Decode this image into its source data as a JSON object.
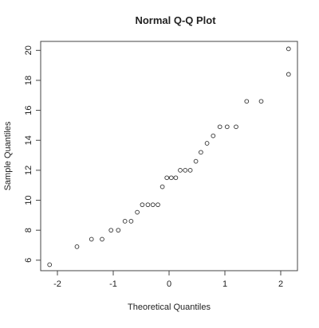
{
  "chart_data": {
    "type": "scatter",
    "title": "Normal Q-Q Plot",
    "xlabel": "Theoretical Quantiles",
    "ylabel": "Sample Quantiles",
    "xlim": [
      -2.3,
      2.3
    ],
    "ylim": [
      5.3,
      20.6
    ],
    "x_ticks": [
      -2,
      -1,
      0,
      1,
      2
    ],
    "y_ticks": [
      6,
      8,
      10,
      12,
      14,
      16,
      18,
      20
    ],
    "grid": false,
    "legend": "none",
    "marker": "open-circle",
    "points": [
      {
        "x": -2.14,
        "y": 5.7
      },
      {
        "x": -1.65,
        "y": 6.9
      },
      {
        "x": -1.39,
        "y": 7.4
      },
      {
        "x": -1.2,
        "y": 7.4
      },
      {
        "x": -1.04,
        "y": 8.0
      },
      {
        "x": -0.91,
        "y": 8.0
      },
      {
        "x": -0.79,
        "y": 8.6
      },
      {
        "x": -0.68,
        "y": 8.6
      },
      {
        "x": -0.57,
        "y": 9.2
      },
      {
        "x": -0.48,
        "y": 9.7
      },
      {
        "x": -0.38,
        "y": 9.7
      },
      {
        "x": -0.29,
        "y": 9.7
      },
      {
        "x": -0.2,
        "y": 9.7
      },
      {
        "x": -0.12,
        "y": 10.9
      },
      {
        "x": -0.04,
        "y": 11.5
      },
      {
        "x": 0.04,
        "y": 11.5
      },
      {
        "x": 0.12,
        "y": 11.5
      },
      {
        "x": 0.2,
        "y": 12.0
      },
      {
        "x": 0.29,
        "y": 12.0
      },
      {
        "x": 0.38,
        "y": 12.0
      },
      {
        "x": 0.48,
        "y": 12.6
      },
      {
        "x": 0.57,
        "y": 13.2
      },
      {
        "x": 0.68,
        "y": 13.8
      },
      {
        "x": 0.79,
        "y": 14.3
      },
      {
        "x": 0.91,
        "y": 14.9
      },
      {
        "x": 1.04,
        "y": 14.9
      },
      {
        "x": 1.2,
        "y": 14.9
      },
      {
        "x": 1.39,
        "y": 16.6
      },
      {
        "x": 1.65,
        "y": 16.6
      },
      {
        "x": 2.14,
        "y": 18.4
      },
      {
        "x": 2.14,
        "y": 20.1
      }
    ]
  }
}
